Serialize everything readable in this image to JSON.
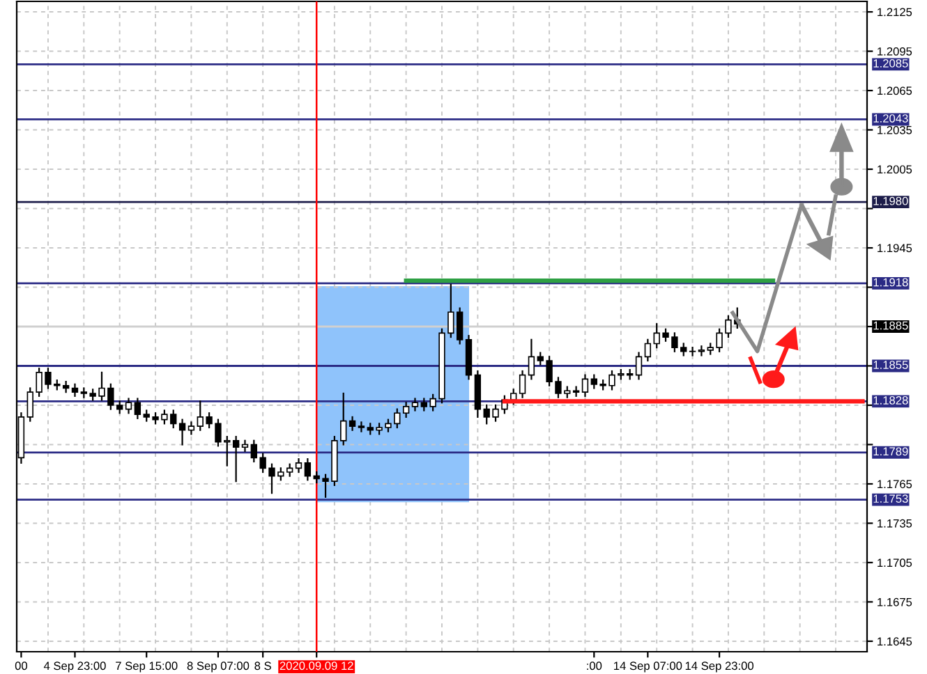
{
  "chart_data": {
    "type": "candlestick",
    "categories": [
      "00",
      null,
      null,
      null,
      null,
      null,
      "4 Sep 23:00",
      null,
      null,
      null,
      null,
      null,
      null,
      null,
      "7 Sep 15:00",
      null,
      null,
      null,
      null,
      null,
      null,
      null,
      "8 Sep 07:00",
      null,
      null,
      null,
      null,
      "8 S",
      null,
      null,
      null,
      null,
      null,
      "2020.09.09 12",
      null,
      null,
      null,
      null,
      null,
      null,
      null,
      null,
      null,
      null,
      null,
      null,
      null,
      null,
      null,
      null,
      null,
      null,
      null,
      null,
      null,
      null,
      null,
      null,
      null,
      null,
      null,
      null,
      null,
      null,
      ":00",
      null,
      null,
      null,
      null,
      null,
      "14 Sep 07:00",
      null,
      null,
      null,
      null,
      null,
      null,
      null,
      "14 Sep 23:00",
      null,
      null,
      null,
      null,
      null,
      null,
      null,
      null,
      null,
      null,
      null,
      null,
      null,
      null,
      null,
      null
    ],
    "ohlc": [
      [
        1.1785,
        1.1819,
        1.1781,
        1.1816
      ],
      [
        1.1816,
        1.1838,
        1.1813,
        1.1835
      ],
      [
        1.1835,
        1.1853,
        1.1832,
        1.185
      ],
      [
        1.185,
        1.1853,
        1.1838,
        1.1841
      ],
      [
        1.1841,
        1.1844,
        1.1837,
        1.184
      ],
      [
        1.184,
        1.1843,
        1.1835,
        1.1838
      ],
      [
        1.1838,
        1.1841,
        1.1832,
        1.1835
      ],
      [
        1.1835,
        1.1838,
        1.1831,
        1.1834
      ],
      [
        1.1834,
        1.1837,
        1.1829,
        1.1832
      ],
      [
        1.1832,
        1.185,
        1.1829,
        1.1838
      ],
      [
        1.1838,
        1.1841,
        1.1822,
        1.1825
      ],
      [
        1.1825,
        1.1828,
        1.1819,
        1.1822
      ],
      [
        1.1822,
        1.183,
        1.1819,
        1.1827
      ],
      [
        1.1827,
        1.183,
        1.1815,
        1.1818
      ],
      [
        1.1818,
        1.1821,
        1.1813,
        1.1816
      ],
      [
        1.1816,
        1.1819,
        1.1811,
        1.1814
      ],
      [
        1.1814,
        1.1821,
        1.1811,
        1.1818
      ],
      [
        1.1818,
        1.1821,
        1.1808,
        1.1811
      ],
      [
        1.1811,
        1.1814,
        1.1795,
        1.1806
      ],
      [
        1.1806,
        1.1812,
        1.1803,
        1.1809
      ],
      [
        1.1809,
        1.1828,
        1.1806,
        1.1816
      ],
      [
        1.1816,
        1.1819,
        1.1808,
        1.1811
      ],
      [
        1.1811,
        1.1814,
        1.1794,
        1.1797
      ],
      [
        1.1797,
        1.1801,
        1.1779,
        1.1798
      ],
      [
        1.1798,
        1.1801,
        1.1767,
        1.1793
      ],
      [
        1.1793,
        1.1798,
        1.179,
        1.1795
      ],
      [
        1.1795,
        1.1798,
        1.1782,
        1.1785
      ],
      [
        1.1785,
        1.1788,
        1.1774,
        1.1777
      ],
      [
        1.1777,
        1.178,
        1.1758,
        1.1771
      ],
      [
        1.1771,
        1.1777,
        1.1768,
        1.1774
      ],
      [
        1.1774,
        1.178,
        1.1771,
        1.1777
      ],
      [
        1.1777,
        1.1784,
        1.1774,
        1.1781
      ],
      [
        1.1781,
        1.1784,
        1.1768,
        1.1771
      ],
      [
        1.1771,
        1.1774,
        1.1766,
        1.1769
      ],
      [
        1.1769,
        1.1772,
        1.1755,
        1.1767
      ],
      [
        1.1767,
        1.1801,
        1.1764,
        1.1798
      ],
      [
        1.1798,
        1.1834,
        1.1795,
        1.1813
      ],
      [
        1.1813,
        1.1816,
        1.1806,
        1.1809
      ],
      [
        1.1809,
        1.1812,
        1.1805,
        1.1808
      ],
      [
        1.1808,
        1.1811,
        1.1803,
        1.1806
      ],
      [
        1.1806,
        1.1811,
        1.1803,
        1.1808
      ],
      [
        1.1808,
        1.1814,
        1.1805,
        1.1811
      ],
      [
        1.1811,
        1.1822,
        1.1808,
        1.1819
      ],
      [
        1.1819,
        1.1827,
        1.1816,
        1.1824
      ],
      [
        1.1824,
        1.183,
        1.1821,
        1.1827
      ],
      [
        1.1827,
        1.183,
        1.1821,
        1.1824
      ],
      [
        1.1824,
        1.1833,
        1.1821,
        1.183
      ],
      [
        1.183,
        1.1883,
        1.1827,
        1.188
      ],
      [
        1.188,
        1.1917,
        1.1877,
        1.1896
      ],
      [
        1.1896,
        1.1899,
        1.1872,
        1.1875
      ],
      [
        1.1875,
        1.1878,
        1.1845,
        1.1848
      ],
      [
        1.1848,
        1.1851,
        1.1816,
        1.1822
      ],
      [
        1.1822,
        1.1825,
        1.1811,
        1.1816
      ],
      [
        1.1816,
        1.1825,
        1.1813,
        1.1822
      ],
      [
        1.1822,
        1.1832,
        1.1819,
        1.1829
      ],
      [
        1.1829,
        1.1837,
        1.1826,
        1.1834
      ],
      [
        1.1834,
        1.1851,
        1.1831,
        1.1848
      ],
      [
        1.1848,
        1.1875,
        1.1845,
        1.1862
      ],
      [
        1.1862,
        1.1865,
        1.1856,
        1.1859
      ],
      [
        1.1859,
        1.1862,
        1.184,
        1.1843
      ],
      [
        1.1843,
        1.1846,
        1.1831,
        1.1834
      ],
      [
        1.1834,
        1.1839,
        1.1831,
        1.1836
      ],
      [
        1.1836,
        1.1839,
        1.1832,
        1.1835
      ],
      [
        1.1835,
        1.1848,
        1.1832,
        1.1845
      ],
      [
        1.1845,
        1.1848,
        1.1838,
        1.1841
      ],
      [
        1.1841,
        1.1844,
        1.1837,
        1.184
      ],
      [
        1.184,
        1.1851,
        1.1837,
        1.1848
      ],
      [
        1.1848,
        1.1852,
        1.1845,
        1.1849
      ],
      [
        1.1849,
        1.1852,
        1.1845,
        1.1848
      ],
      [
        1.1848,
        1.1865,
        1.1845,
        1.1862
      ],
      [
        1.1862,
        1.1875,
        1.1859,
        1.1872
      ],
      [
        1.1872,
        1.1887,
        1.1869,
        1.188
      ],
      [
        1.188,
        1.1883,
        1.1874,
        1.1877
      ],
      [
        1.1877,
        1.188,
        1.1866,
        1.1869
      ],
      [
        1.1869,
        1.1872,
        1.1863,
        1.1866
      ],
      [
        1.1866,
        1.1869,
        1.1863,
        1.1866
      ],
      [
        1.1866,
        1.187,
        1.1863,
        1.1867
      ],
      [
        1.1867,
        1.1872,
        1.1864,
        1.1869
      ],
      [
        1.1869,
        1.1883,
        1.1866,
        1.188
      ],
      [
        1.188,
        1.1893,
        1.1877,
        1.189
      ],
      [
        1.189,
        1.1899,
        1.1884,
        1.1887
      ],
      null,
      null,
      null,
      null,
      null,
      null,
      null,
      null,
      null,
      null,
      null,
      null,
      null,
      null
    ],
    "ylim": [
      1.1637,
      1.2133
    ],
    "yticks": [
      1.2125,
      1.2095,
      1.2065,
      1.2035,
      1.2005,
      {
        "value": 1.1975,
        "label": null
      },
      1.1945,
      {
        "value": 1.1915,
        "label": null
      },
      {
        "value": 1.1885,
        "label": null
      },
      {
        "value": 1.1855,
        "label": null
      },
      {
        "value": 1.1825,
        "label": null
      },
      {
        "value": 1.1795,
        "label": null
      },
      1.1765,
      1.1735,
      1.1705,
      1.1675,
      1.1645
    ],
    "ref_lines": [
      {
        "axis": "y",
        "value": 1.2085,
        "label": "1.2085",
        "color": "#2b2b85"
      },
      {
        "axis": "y",
        "value": 1.2043,
        "label": "1.2043",
        "color": "#2b2b85"
      },
      {
        "axis": "y",
        "value": 1.198,
        "label": "1.1980",
        "color": "#1c1c4a"
      },
      {
        "axis": "y",
        "value": 1.1918,
        "label": "1.1918",
        "color": "#2b2b85"
      },
      {
        "axis": "y",
        "value": 1.1885,
        "label": "1.1885",
        "color": "#d0d0d0"
      },
      {
        "axis": "y",
        "value": 1.1855,
        "label": "1.1855",
        "color": "#2b2b85"
      },
      {
        "axis": "y",
        "value": 1.1828,
        "label": "1.1828",
        "color": "#2b2b85"
      },
      {
        "axis": "y",
        "value": 1.1789,
        "label": "1.1789",
        "color": "#2b2b85"
      },
      {
        "axis": "y",
        "value": 1.1753,
        "label": "1.1753",
        "color": "#2b2b85"
      },
      {
        "axis": "x",
        "value": "2020.09.09 12",
        "color": "#ff0000"
      }
    ],
    "series": [
      {
        "type": "line",
        "color": "#2ea043",
        "values": [
          null,
          null,
          null,
          null,
          null,
          null,
          null,
          null,
          null,
          null,
          null,
          null,
          null,
          null,
          null,
          null,
          null,
          null,
          null,
          null,
          null,
          null,
          null,
          null,
          null,
          null,
          null,
          null,
          null,
          null,
          null,
          null,
          null,
          null,
          null,
          null,
          null,
          null,
          null,
          null,
          null,
          null,
          null,
          1.192,
          1.192,
          1.192,
          1.192,
          1.192,
          1.192,
          1.192,
          1.192,
          1.192,
          1.192,
          1.192,
          1.192,
          1.192,
          1.192,
          1.192,
          1.192,
          1.192,
          1.192,
          1.192,
          1.192,
          1.192,
          1.192,
          1.192,
          1.192,
          1.192,
          1.192,
          1.192,
          1.192,
          1.192,
          1.192,
          1.192,
          1.192,
          1.192,
          1.192,
          1.192,
          1.192,
          1.192,
          1.192,
          1.192,
          1.192,
          1.192,
          1.192,
          null,
          null,
          null,
          null,
          null,
          null,
          null,
          null,
          null,
          null
        ]
      },
      {
        "type": "line",
        "color": "#ff1a1a",
        "values": [
          null,
          null,
          null,
          null,
          null,
          null,
          null,
          null,
          null,
          null,
          null,
          null,
          null,
          null,
          null,
          null,
          null,
          null,
          null,
          null,
          null,
          null,
          null,
          null,
          null,
          null,
          null,
          null,
          null,
          null,
          null,
          null,
          null,
          null,
          null,
          null,
          null,
          null,
          null,
          null,
          null,
          null,
          null,
          null,
          null,
          null,
          null,
          null,
          null,
          null,
          null,
          null,
          null,
          null,
          1.1828,
          1.1828,
          1.1828,
          1.1828,
          1.1828,
          1.1828,
          1.1828,
          1.1828,
          1.1828,
          1.1828,
          1.1828,
          1.1828,
          1.1828,
          1.1828,
          1.1828,
          1.1828,
          1.1828,
          1.1828,
          1.1828,
          1.1828,
          1.1828,
          1.1828,
          1.1828,
          1.1828,
          1.1828,
          1.1828,
          1.1828,
          1.1828,
          1.1828,
          1.1828,
          1.1828,
          1.1828,
          1.1828,
          1.1828,
          1.1828,
          1.1828,
          1.1828,
          1.1828,
          1.1828,
          1.1828,
          1.1828
        ]
      }
    ],
    "grid": true,
    "legend": false
  }
}
